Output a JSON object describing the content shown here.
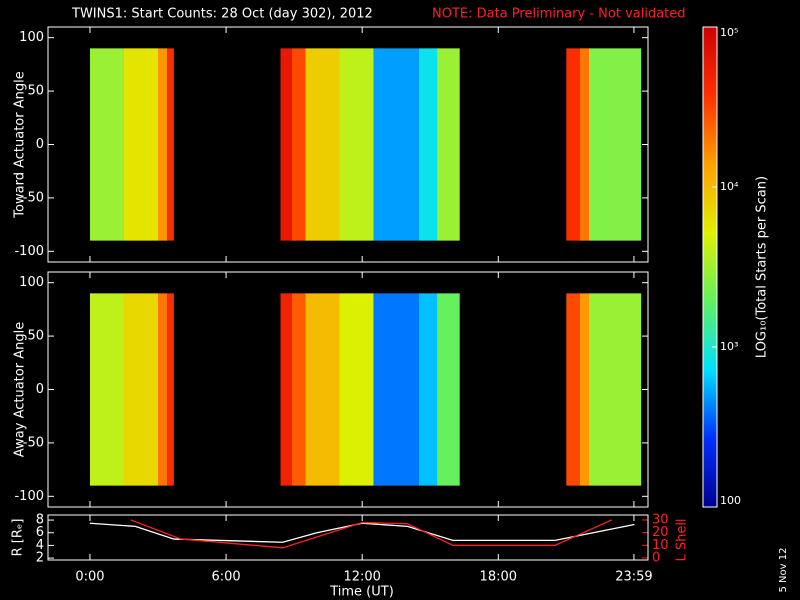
{
  "title": "TWINS1: Start Counts: 28 Oct (day 302), 2012",
  "note": "NOTE: Data Preliminary - Not validated",
  "footnote": "5 Nov 12",
  "colorbar": {
    "label": "LOG₁₀(Total Starts per Scan)",
    "scale": "log",
    "clim": [
      100,
      100000
    ],
    "ticks": [
      {
        "value": 100000,
        "label": "10⁵"
      },
      {
        "value": 10000,
        "label": "10⁴"
      },
      {
        "value": 1000,
        "label": "10³"
      },
      100
    ],
    "colormap": [
      "#000090",
      "#0030ff",
      "#00e0ff",
      "#60f060",
      "#e0f000",
      "#ffa000",
      "#ff3000",
      "#d00000"
    ]
  },
  "chart_data": [
    {
      "type": "heatmap",
      "ylabel": "Toward Actuator Angle",
      "xlim": [
        -1.85,
        24.6
      ],
      "ylim": [
        -110,
        110
      ],
      "yticks": [
        -100,
        -50,
        0,
        50,
        100
      ],
      "yrange": [
        -90,
        90
      ],
      "xbins": [
        0,
        1.5,
        3,
        3.4,
        3.7,
        8.4,
        8.9,
        9.5,
        11,
        12.5,
        14.5,
        15.3,
        16.3,
        21,
        21.6,
        22,
        24.3
      ],
      "values": [
        3000,
        6000,
        15000,
        40000,
        null,
        60000,
        30000,
        8000,
        4000,
        500,
        800,
        3000,
        null,
        40000,
        20000,
        2500
      ]
    },
    {
      "type": "heatmap",
      "ylabel": "Away Actuator Angle",
      "xlim": [
        -1.85,
        24.6
      ],
      "ylim": [
        -110,
        110
      ],
      "yticks": [
        -100,
        -50,
        0,
        50,
        100
      ],
      "yrange": [
        -90,
        90
      ],
      "xbins": [
        0,
        1.5,
        3,
        3.4,
        3.7,
        8.4,
        8.9,
        9.5,
        11,
        12.5,
        14.5,
        15.3,
        16.3,
        21,
        21.6,
        22,
        24.3
      ],
      "values": [
        4000,
        7000,
        20000,
        40000,
        null,
        50000,
        25000,
        10000,
        5000,
        400,
        600,
        2000,
        null,
        30000,
        15000,
        3000
      ]
    },
    {
      "type": "line",
      "ylabel": "R [Rₑ]",
      "y2label": "L Shell",
      "xlabel": "Time (UT)",
      "xlim": [
        -1.85,
        24.6
      ],
      "ylim": [
        1.7,
        8.8
      ],
      "yticks": [
        2,
        4,
        6,
        8
      ],
      "y2lim": [
        -1.6,
        33.9
      ],
      "y2ticks": [
        0,
        10,
        20,
        30
      ],
      "xticks": [
        {
          "value": 0,
          "label": "0:00"
        },
        {
          "value": 6,
          "label": "6:00"
        },
        {
          "value": 12,
          "label": "12:00"
        },
        {
          "value": 18,
          "label": "18:00"
        },
        {
          "value": 23.98,
          "label": "23:59"
        }
      ],
      "series": [
        {
          "color": "#ffffff",
          "x": [
            0,
            2,
            3.7,
            8.5,
            10,
            12,
            14,
            16,
            20.5,
            24
          ],
          "values": [
            7.5,
            7,
            5,
            4.5,
            6,
            7.5,
            7,
            4.8,
            4.8,
            7.3
          ]
        },
        {
          "color": "#ff2020",
          "axis": "y2",
          "x": [
            1.8,
            4,
            8.5,
            12,
            14,
            16,
            20.5,
            23
          ],
          "values": [
            30,
            15,
            8,
            28,
            27,
            10,
            10,
            30
          ]
        }
      ]
    }
  ]
}
